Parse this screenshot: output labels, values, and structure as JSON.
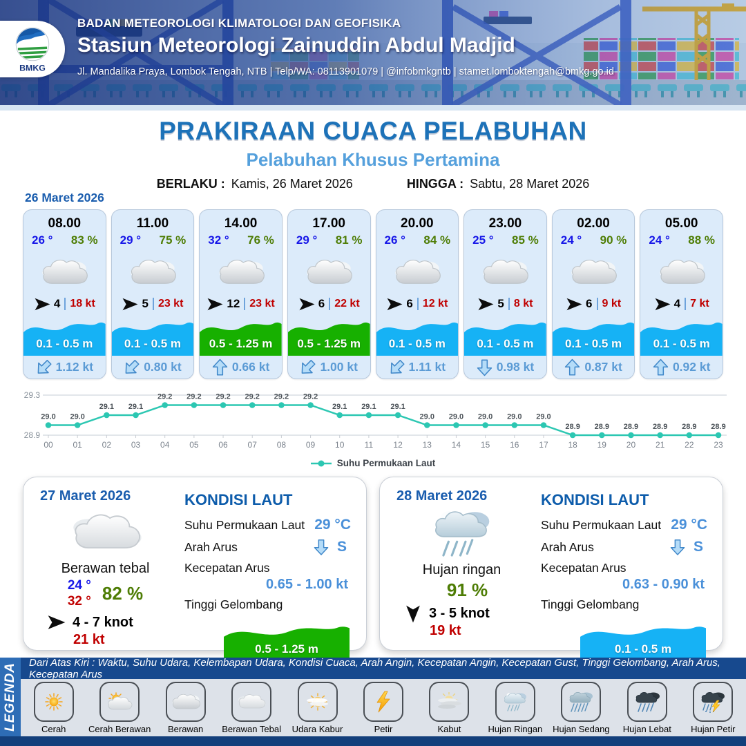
{
  "header": {
    "agency": "BADAN METEOROLOGI KLIMATOLOGI DAN GEOFISIKA",
    "station": "Stasiun Meteorologi Zainuddin Abdul Madjid",
    "contact": "Jl. Mandalika Praya, Lombok Tengah, NTB | Telp/WA: 08113901079 | @infobmkgntb | stamet.lomboktengah@bmkg.go.id",
    "logo_text": "BMKG"
  },
  "title": {
    "main": "PRAKIRAAN CUACA PELABUHAN",
    "subtitle": "Pelabuhan Khusus Pertamina",
    "valid_from_label": "BERLAKU :",
    "valid_from": "Kamis, 26 Maret 2026",
    "valid_to_label": "HINGGA :",
    "valid_to": "Sabtu, 28 Maret 2026"
  },
  "iconset": {
    "wind": "wind-arrow",
    "current": "current-arrow"
  },
  "hourly": {
    "date": "26 Maret 2026",
    "cards": [
      {
        "time": "08.00",
        "temp": "26 °",
        "humidity": "83 %",
        "weather_icon": "berawan",
        "wind_dir_deg": 0,
        "wind_speed": "4",
        "gust": "18 kt",
        "wave": "0.1 - 0.5 m",
        "wave_color": "#16b2f5",
        "current": "1.12 kt",
        "current_dir_deg": 225
      },
      {
        "time": "11.00",
        "temp": "29 °",
        "humidity": "75 %",
        "weather_icon": "berawan",
        "wind_dir_deg": 0,
        "wind_speed": "5",
        "gust": "23 kt",
        "wave": "0.1 - 0.5 m",
        "wave_color": "#16b2f5",
        "current": "0.80 kt",
        "current_dir_deg": 225
      },
      {
        "time": "14.00",
        "temp": "32 °",
        "humidity": "76 %",
        "weather_icon": "berawan",
        "wind_dir_deg": 0,
        "wind_speed": "12",
        "gust": "23 kt",
        "wave": "0.5 - 1.25 m",
        "wave_color": "#17b000",
        "current": "0.66 kt",
        "current_dir_deg": 0
      },
      {
        "time": "17.00",
        "temp": "29 °",
        "humidity": "81 %",
        "weather_icon": "berawan",
        "wind_dir_deg": 0,
        "wind_speed": "6",
        "gust": "22 kt",
        "wave": "0.5 - 1.25 m",
        "wave_color": "#17b000",
        "current": "1.00 kt",
        "current_dir_deg": 225
      },
      {
        "time": "20.00",
        "temp": "26 °",
        "humidity": "84 %",
        "weather_icon": "berawan",
        "wind_dir_deg": 0,
        "wind_speed": "6",
        "gust": "12 kt",
        "wave": "0.1 - 0.5 m",
        "wave_color": "#16b2f5",
        "current": "1.11 kt",
        "current_dir_deg": 225
      },
      {
        "time": "23.00",
        "temp": "25 °",
        "humidity": "85 %",
        "weather_icon": "berawan",
        "wind_dir_deg": 0,
        "wind_speed": "5",
        "gust": "8 kt",
        "wave": "0.1 - 0.5 m",
        "wave_color": "#16b2f5",
        "current": "0.98 kt",
        "current_dir_deg": 180
      },
      {
        "time": "02.00",
        "temp": "24 °",
        "humidity": "90 %",
        "weather_icon": "berawan",
        "wind_dir_deg": 0,
        "wind_speed": "6",
        "gust": "9 kt",
        "wave": "0.1 - 0.5 m",
        "wave_color": "#16b2f5",
        "current": "0.87 kt",
        "current_dir_deg": 0
      },
      {
        "time": "05.00",
        "temp": "24 °",
        "humidity": "88 %",
        "weather_icon": "berawan",
        "wind_dir_deg": 0,
        "wind_speed": "4",
        "gust": "7 kt",
        "wave": "0.1 - 0.5 m",
        "wave_color": "#16b2f5",
        "current": "0.92 kt",
        "current_dir_deg": 0
      }
    ]
  },
  "chart_data": {
    "type": "line",
    "x": [
      "00",
      "01",
      "02",
      "03",
      "04",
      "05",
      "06",
      "07",
      "08",
      "09",
      "10",
      "11",
      "12",
      "13",
      "14",
      "15",
      "16",
      "17",
      "18",
      "19",
      "20",
      "21",
      "22",
      "23"
    ],
    "series": [
      {
        "name": "Suhu Permukaan Laut",
        "color": "#2cc7b2",
        "values": [
          29.0,
          29.0,
          29.1,
          29.1,
          29.2,
          29.2,
          29.2,
          29.2,
          29.2,
          29.2,
          29.1,
          29.1,
          29.1,
          29.0,
          29.0,
          29.0,
          29.0,
          29.0,
          28.9,
          28.9,
          28.9,
          28.9,
          28.9,
          28.9
        ]
      }
    ],
    "ylim": [
      28.9,
      29.3
    ],
    "yticks": [
      28.9,
      29.3
    ],
    "grid": true,
    "legend_position": "bottom-center"
  },
  "daily": [
    {
      "date": "27 Maret 2026",
      "weather_icon": "berawan-tebal",
      "condition": "Berawan tebal",
      "temp_min": "24 °",
      "temp_max": "32 °",
      "humidity": "82 %",
      "wind_dir_deg": 0,
      "wind": "4  - 7 knot",
      "gust": "21 kt",
      "sea": {
        "title": "KONDISI LAUT",
        "sst_label": "Suhu Permukaan Laut",
        "sst": "29 °C",
        "dir_label": "Arah Arus",
        "dir": "S",
        "dir_deg": 180,
        "speed_label": "Kecepatan Arus",
        "speed": "0.65 - 1.00 kt",
        "wave_label": "Tinggi Gelombang",
        "wave": "0.5 - 1.25 m",
        "wave_color": "#17b000"
      }
    },
    {
      "date": "28 Maret 2026",
      "weather_icon": "hujan-ringan",
      "condition": "Hujan ringan",
      "temp_min": "",
      "temp_max": "",
      "humidity": "91 %",
      "wind_dir_deg": 90,
      "wind": "3  - 5 knot",
      "gust": "19 kt",
      "sea": {
        "title": "KONDISI LAUT",
        "sst_label": "Suhu Permukaan Laut",
        "sst": "29 °C",
        "dir_label": "Arah Arus",
        "dir": "S",
        "dir_deg": 180,
        "speed_label": "Kecepatan Arus",
        "speed": "0.63 - 0.90 kt",
        "wave_label": "Tinggi Gelombang",
        "wave": "0.1 - 0.5 m",
        "wave_color": "#16b2f5"
      }
    }
  ],
  "legend": {
    "title": "LEGENDA",
    "caption": "Dari Atas Kiri : Waktu, Suhu Udara, Kelembapan Udara, Kondisi Cuaca, Arah Angin, Kecepatan Angin, Kecepatan Gust, Tinggi Gelombang, Arah Arus, Kecepatan Arus",
    "items": [
      {
        "label": "Cerah",
        "icon": "cerah"
      },
      {
        "label": "Cerah Berawan",
        "icon": "cerah-berawan"
      },
      {
        "label": "Berawan",
        "icon": "berawan"
      },
      {
        "label": "Berawan Tebal",
        "icon": "berawan-tebal"
      },
      {
        "label": "Udara Kabur",
        "icon": "udara-kabur"
      },
      {
        "label": "Petir",
        "icon": "petir"
      },
      {
        "label": "Kabut",
        "icon": "kabut"
      },
      {
        "label": "Hujan Ringan",
        "icon": "hujan-ringan"
      },
      {
        "label": "Hujan Sedang",
        "icon": "hujan-sedang"
      },
      {
        "label": "Hujan Lebat",
        "icon": "hujan-lebat"
      },
      {
        "label": "Hujan Petir",
        "icon": "hujan-petir"
      }
    ]
  },
  "colors": {
    "wave_blue": "#16b2f5",
    "wave_green": "#17b000",
    "temp_blue": "#1616e8",
    "humidity_green": "#4e7d05",
    "gust_red": "#c00000",
    "sea_value_blue": "#4a90d9",
    "chart_teal": "#2cc7b2",
    "header_blue": "#2b55a8",
    "title_blue": "#1d72b8"
  }
}
